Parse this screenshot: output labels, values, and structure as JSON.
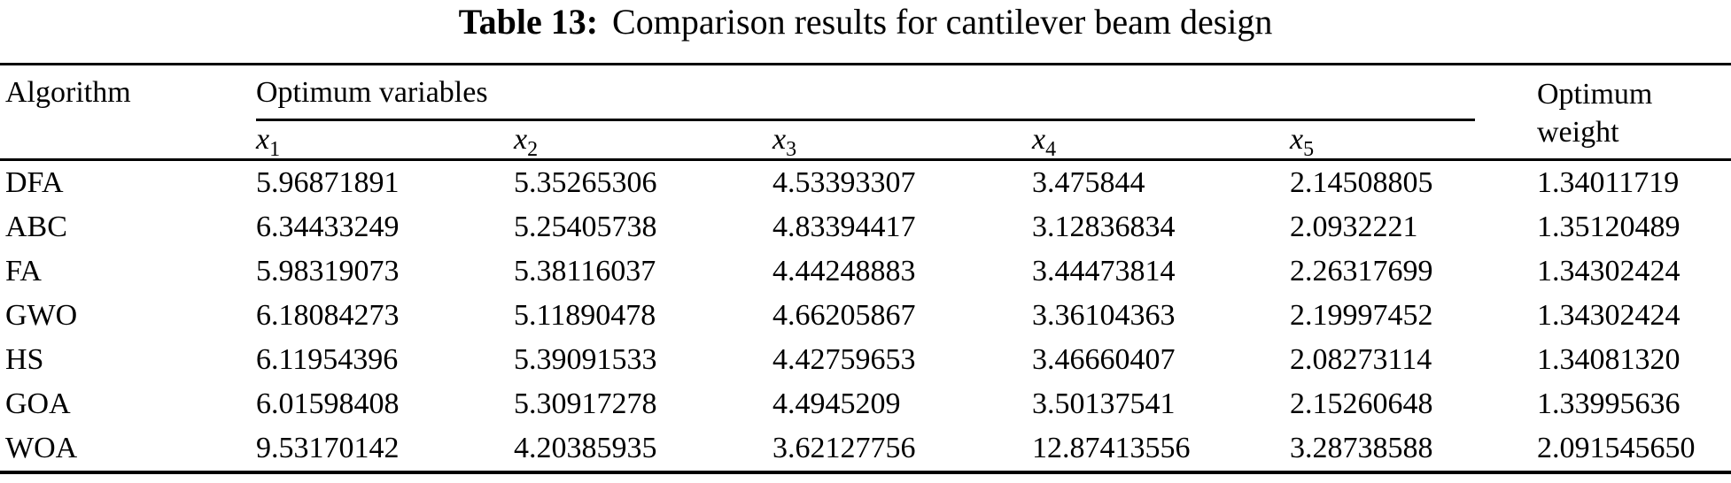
{
  "title": {
    "tag": "Table 13:",
    "text": "Comparison results for cantilever beam design"
  },
  "table": {
    "headers": {
      "algorithm": "Algorithm",
      "group": "Optimum variables",
      "weight": "Optimum weight",
      "variable_base": "x",
      "variable_subscripts": [
        "1",
        "2",
        "3",
        "4",
        "5"
      ]
    },
    "rows": [
      {
        "algorithm": "DFA",
        "values": [
          "5.96871891",
          "5.35265306",
          "4.53393307",
          "3.475844",
          "2.14508805"
        ],
        "weight": "1.34011719"
      },
      {
        "algorithm": "ABC",
        "values": [
          "6.34433249",
          "5.25405738",
          "4.83394417",
          "3.12836834",
          "2.0932221"
        ],
        "weight": "1.35120489"
      },
      {
        "algorithm": "FA",
        "values": [
          "5.98319073",
          "5.38116037",
          "4.44248883",
          "3.44473814",
          "2.26317699"
        ],
        "weight": "1.34302424"
      },
      {
        "algorithm": "GWO",
        "values": [
          "6.18084273",
          "5.11890478",
          "4.66205867",
          "3.36104363",
          "2.19997452"
        ],
        "weight": "1.34302424"
      },
      {
        "algorithm": "HS",
        "values": [
          "6.11954396",
          "5.39091533",
          "4.42759653",
          "3.46660407",
          "2.08273114"
        ],
        "weight": "1.34081320"
      },
      {
        "algorithm": "GOA",
        "values": [
          "6.01598408",
          "5.30917278",
          "4.4945209",
          "3.50137541",
          "2.15260648"
        ],
        "weight": "1.33995636"
      },
      {
        "algorithm": "WOA",
        "values": [
          "9.53170142",
          "4.20385935",
          "3.62127756",
          "12.87413556",
          "3.28738588"
        ],
        "weight": "2.091545650"
      }
    ]
  }
}
